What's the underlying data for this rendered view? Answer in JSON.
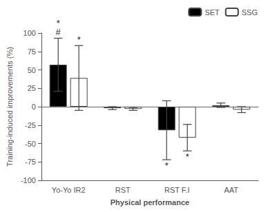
{
  "chart_data": {
    "type": "bar",
    "xlabel": "Physical performance",
    "ylabel": "Training-induced improvements (%)",
    "categories": [
      "Yo-Yo IR2",
      "RST",
      "RST F.I",
      "AAT"
    ],
    "series": [
      {
        "name": "SET",
        "color": "#000000",
        "values": [
          57,
          -2,
          -32,
          2
        ],
        "errors": [
          36,
          2,
          40,
          3
        ]
      },
      {
        "name": "SSG",
        "color": "#ffffff",
        "values": [
          39,
          -3,
          -42,
          -4
        ],
        "errors": [
          44,
          2,
          18,
          4
        ]
      }
    ],
    "ylim": [
      -100,
      100
    ],
    "yticks": [
      -100,
      -75,
      -50,
      -25,
      0,
      25,
      50,
      75,
      100
    ],
    "grid": false,
    "legend": "upper right",
    "annotations": [
      {
        "text": "#",
        "category": "Yo-Yo IR2",
        "series": "SET",
        "position": "above"
      },
      {
        "text": "*",
        "category": "Yo-Yo IR2",
        "series": "SET",
        "position": "above"
      },
      {
        "text": "*",
        "category": "Yo-Yo IR2",
        "series": "SSG",
        "position": "above"
      },
      {
        "text": "*",
        "category": "RST F.I",
        "series": "SET",
        "position": "below"
      },
      {
        "text": "*",
        "category": "RST F.I",
        "series": "SSG",
        "position": "below"
      }
    ]
  }
}
